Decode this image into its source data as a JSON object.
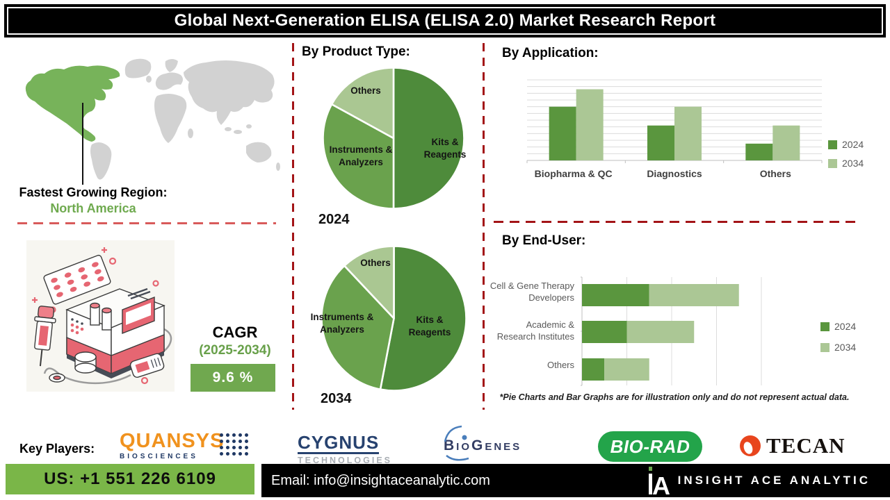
{
  "title": "Global Next-Generation ELISA (ELISA 2.0) Market Research Report",
  "region": {
    "label": "Fastest Growing Region:",
    "value": "North America"
  },
  "cagr": {
    "label": "CAGR",
    "period": "(2025-2034)",
    "value": "9.6 %"
  },
  "colors": {
    "pie_dark_green": "#4e8b3b",
    "pie_mid_green": "#6aa24d",
    "pie_light_green": "#aac792",
    "bar_2024": "#5a963e",
    "bar_2034": "#abc795",
    "map_highlight": "#77b35a",
    "accent_green_box": "#70a84f",
    "phone_bar_green": "#7ab648",
    "dash_red": "#a31417"
  },
  "chart_data": [
    {
      "type": "pie",
      "title": "By Product Type:",
      "year": "2024",
      "labels": [
        "Kits &\nReagents",
        "Instruments &\nAnalyzers",
        "Others"
      ],
      "values": [
        50,
        33,
        17
      ],
      "colors": [
        "#4e8b3b",
        "#6aa24d",
        "#aac792"
      ]
    },
    {
      "type": "pie",
      "title": "By Product Type:",
      "year": "2034",
      "labels": [
        "Kits &\nReagents",
        "Instruments &\nAnalyzers",
        "Others"
      ],
      "values": [
        53,
        35,
        12
      ],
      "colors": [
        "#4e8b3b",
        "#6aa24d",
        "#aac792"
      ]
    },
    {
      "type": "bar",
      "title": "By Application:",
      "categories": [
        "Biopharma & QC",
        "Diagnostics",
        "Others"
      ],
      "series": [
        {
          "name": "2024",
          "color": "#5a963e",
          "values": [
            8,
            5.2,
            2.5
          ]
        },
        {
          "name": "2034",
          "color": "#abc795",
          "values": [
            10.6,
            8,
            5.2
          ]
        }
      ],
      "ylim": [
        0,
        12
      ],
      "gridlines": 13,
      "legend_position": "right"
    },
    {
      "type": "stacked-bar-horizontal",
      "title": "By End-User:",
      "categories": [
        "Cell & Gene Therapy\nDevelopers",
        "Academic &\nResearch Institutes",
        "Others"
      ],
      "series": [
        {
          "name": "2024",
          "color": "#5a963e",
          "values": [
            1.5,
            1.0,
            0.5
          ]
        },
        {
          "name": "2034",
          "color": "#abc795",
          "values": [
            2.0,
            1.5,
            1.0
          ]
        }
      ],
      "xlim": [
        0,
        5
      ],
      "legend_position": "right"
    }
  ],
  "disclaimer": "*Pie Charts and Bar Graphs are for illustration only and do not represent actual data.",
  "key_players": {
    "label": "Key Players:",
    "players": [
      {
        "name": "QUANSYS",
        "sub": "BIOSCIENCES"
      },
      {
        "name": "CYGNUS",
        "sub": "TECHNOLOGIES"
      },
      {
        "name": "BioGenes"
      },
      {
        "name": "BIO-RAD"
      },
      {
        "name": "TECAN"
      }
    ]
  },
  "footer": {
    "phone": "US: +1 551 226 6109",
    "email": "Email: info@insightaceanalytic.com",
    "brand": "INSIGHT ACE ANALYTIC"
  }
}
